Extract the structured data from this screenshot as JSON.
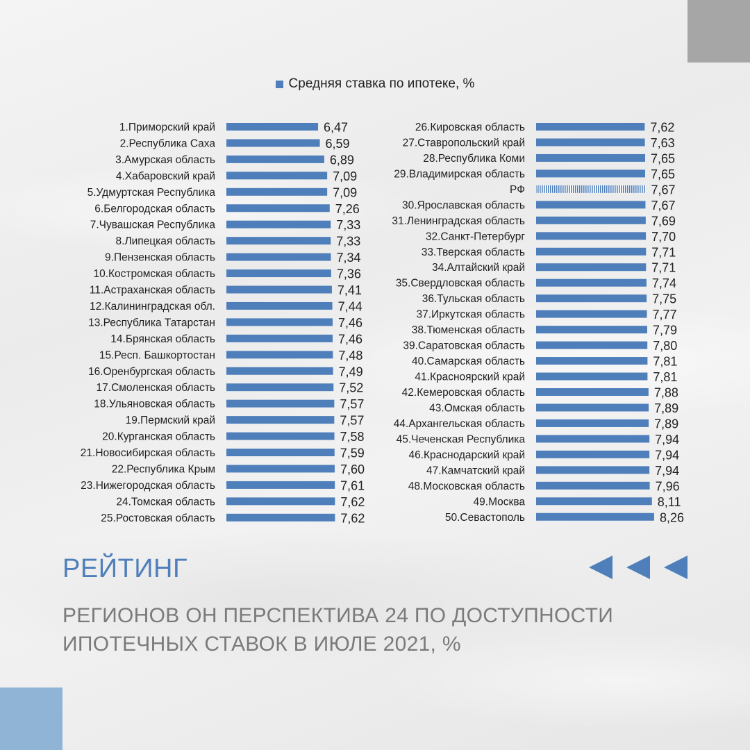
{
  "title": "РЕЙТИНГ",
  "subtitle_lines": [
    "РЕГИОНОВ ОН ПЕРСПЕКТИВА 24 ПО ДОСТУПНОСТИ",
    "ИПОТЕЧНЫХ СТАВОК В ИЮЛЕ 2021, %"
  ],
  "colors": {
    "accent": "#4f7fba",
    "corner_top_right": "#a6a6a6",
    "corner_bottom_left": "#8fb4d6"
  },
  "icons": [
    "arrow-left-icon",
    "arrow-left-icon",
    "arrow-left-icon"
  ],
  "chart_data": {
    "type": "bar",
    "orientation": "horizontal",
    "legend": {
      "label": "Средняя ставка по ипотеке, %",
      "placement": "top"
    },
    "series": [
      {
        "name": "Средняя ставка по ипотеке, %",
        "columns": [
          {
            "categories": [
              "1.Приморский край",
              "2.Республика Саха",
              "3.Амурская область",
              "4.Хабаровский край",
              "5.Удмуртская Республика",
              "6.Белгородская область",
              "7.Чувашская Республика",
              "8.Липецкая область",
              "9.Пензенская область",
              "10.Костромская область",
              "11.Астраханская область",
              "12.Калининградская обл.",
              "13.Республика Татарстан",
              "14.Брянская область",
              "15.Респ. Башкортостан",
              "16.Оренбургская область",
              "17.Смоленская область",
              "18.Ульяновская область",
              "19.Пермский край",
              "20.Курганская область",
              "21.Новосибирская область",
              "22.Республика Крым",
              "23.Нижегородская область",
              "24.Томская область",
              "25.Ростовская область"
            ],
            "values": [
              6.47,
              6.59,
              6.89,
              7.09,
              7.09,
              7.26,
              7.33,
              7.33,
              7.34,
              7.36,
              7.41,
              7.44,
              7.46,
              7.46,
              7.48,
              7.49,
              7.52,
              7.57,
              7.57,
              7.58,
              7.59,
              7.6,
              7.61,
              7.62,
              7.62
            ],
            "value_labels": [
              "6,47",
              "6,59",
              "6,89",
              "7,09",
              "7,09",
              "7,26",
              "7,33",
              "7,33",
              "7,34",
              "7,36",
              "7,41",
              "7,44",
              "7,46",
              "7,46",
              "7,48",
              "7,49",
              "7,52",
              "7,57",
              "7,57",
              "7,58",
              "7,59",
              "7,60",
              "7,61",
              "7,62",
              "7,62"
            ],
            "highlighted": []
          },
          {
            "categories": [
              "26.Кировская область",
              "27.Ставропольский край",
              "28.Республика Коми",
              "29.Владимирская область",
              "РФ",
              "30.Ярославская область",
              "31.Ленинградская область",
              "32.Санкт-Петербург",
              "33.Тверская область",
              "34.Алтайский край",
              "35.Свердловская область",
              "36.Тульская область",
              "37.Иркутская область",
              "38.Тюменская область",
              "39.Саратовская область",
              "40.Самарская область",
              "41.Красноярский край",
              "42.Кемеровская область",
              "43.Омская область",
              "44.Архангельская область",
              "45.Чеченская Республика",
              "46.Краснодарский край",
              "47.Камчатский край",
              "48.Московская область",
              "49.Москва",
              "50.Севастополь"
            ],
            "values": [
              7.62,
              7.63,
              7.65,
              7.65,
              7.67,
              7.67,
              7.69,
              7.7,
              7.71,
              7.71,
              7.74,
              7.75,
              7.77,
              7.79,
              7.8,
              7.81,
              7.81,
              7.88,
              7.89,
              7.89,
              7.94,
              7.94,
              7.94,
              7.96,
              8.11,
              8.26
            ],
            "value_labels": [
              "7,62",
              "7,63",
              "7,65",
              "7,65",
              "7,67",
              "7,67",
              "7,69",
              "7,70",
              "7,71",
              "7,71",
              "7,74",
              "7,75",
              "7,77",
              "7,79",
              "7,80",
              "7,81",
              "7,81",
              "7,88",
              "7,89",
              "7,89",
              "7,94",
              "7,94",
              "7,94",
              "7,96",
              "8,11",
              "8,26"
            ],
            "highlighted": [
              "РФ"
            ]
          }
        ]
      }
    ],
    "xlim": [
      0,
      8.26
    ],
    "grid": false,
    "axes_visible": false
  }
}
